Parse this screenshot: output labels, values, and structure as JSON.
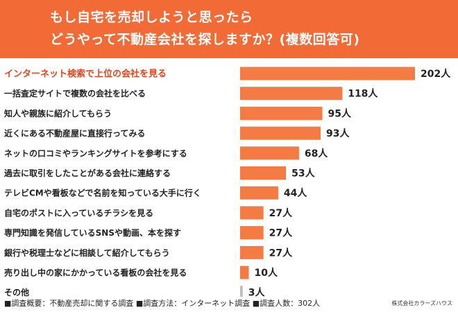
{
  "header": {
    "title_line1": "もし自宅を売却しようと思ったら",
    "title_line2": "どうやって不動産会社を探しますか？(複数回答可)"
  },
  "colors": {
    "header_bg": "#f26b36",
    "bar": "#f47b43",
    "bar_other": "#bdbdbd",
    "highlight_text": "#e2461c"
  },
  "chart_data": {
    "type": "bar",
    "orientation": "horizontal",
    "unit_suffix": "人",
    "categories": [
      "インターネット検索で上位の会社を見る",
      "一括査定サイトで複数の会社を比べる",
      "知人や親族に紹介してもらう",
      "近くにある不動産屋に直接行ってみる",
      "ネットの口コミやランキングサイトを参考にする",
      "過去に取引をしたことがある会社に連絡する",
      "テレビCMや看板などで名前を知っている大手に行く",
      "自宅のポストに入っているチラシを見る",
      "専門知識を発信しているSNSや動画、本を探す",
      "銀行や税理士などに相談して紹介してもらう",
      "売り出し中の家にかかっている看板の会社を見る",
      "その他"
    ],
    "values": [
      202,
      118,
      95,
      93,
      68,
      53,
      44,
      27,
      27,
      27,
      10,
      3
    ],
    "highlight_index": 0
  },
  "footer": {
    "survey_text": "■調査概要：不動産売却に関する調査 ■調査方法：インターネット調査 ■調査人数：302人",
    "credit": "株式会社カラーズハウス"
  }
}
